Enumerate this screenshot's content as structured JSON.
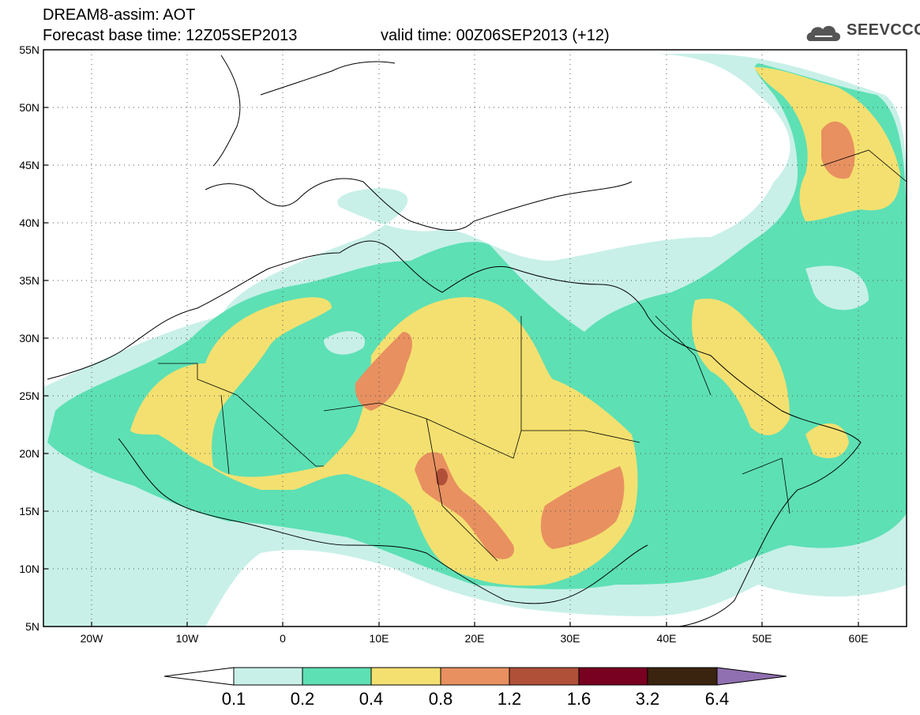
{
  "header": {
    "line1": "DREAM8-assim: AOT",
    "line2": "Forecast base time: 12Z05SEP2013",
    "line3": "valid time: 00Z06SEP2013 (+12)"
  },
  "logo": {
    "text": "SEEVCCC",
    "icon": "cloud-icon"
  },
  "map": {
    "lon_range": [
      -25,
      65
    ],
    "lat_range": [
      5,
      55
    ],
    "lat_labels": [
      "55N",
      "50N",
      "45N",
      "40N",
      "35N",
      "30N",
      "25N",
      "20N",
      "15N",
      "10N",
      "5N"
    ],
    "lon_labels": [
      "20W",
      "10W",
      "0",
      "10E",
      "20E",
      "30E",
      "40E",
      "50E",
      "60E"
    ],
    "gridlines": "dotted"
  },
  "colorbar": {
    "labels": [
      "0.1",
      "0.2",
      "0.4",
      "0.8",
      "1.2",
      "1.6",
      "3.2",
      "6.4"
    ],
    "colors": [
      "#c8f0e8",
      "#5de0b4",
      "#f4e070",
      "#e89060",
      "#b05038",
      "#780020",
      "#3a2410",
      "#9070b0"
    ]
  }
}
